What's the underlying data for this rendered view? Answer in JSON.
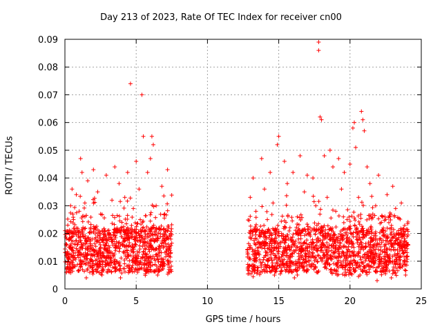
{
  "chart_data": {
    "type": "scatter",
    "title": "Day 213 of 2023, Rate Of TEC Index for receiver cn00",
    "xlabel": "GPS time / hours",
    "ylabel": "ROTI / TECUs",
    "xlim": [
      0,
      25
    ],
    "ylim": [
      0,
      0.09
    ],
    "xticks": [
      0,
      5,
      10,
      15,
      20,
      25
    ],
    "yticks": [
      0,
      0.01,
      0.02,
      0.03,
      0.04,
      0.05,
      0.06,
      0.07,
      0.08,
      0.09
    ],
    "xtick_labels": [
      "0",
      "5",
      "10",
      "15",
      "20",
      "25"
    ],
    "ytick_labels": [
      "0",
      "0.01",
      "0.02",
      "0.03",
      "0.04",
      "0.05",
      "0.06",
      "0.07",
      "0.08",
      "0.09"
    ],
    "grid": true,
    "marker": "+",
    "color": "#ff0000",
    "data_gap": [
      7.5,
      12.8
    ],
    "series": [
      {
        "points": [
          [
            0.1,
            0.012
          ],
          [
            0.2,
            0.023
          ],
          [
            0.3,
            0.015
          ],
          [
            0.4,
            0.03
          ],
          [
            0.5,
            0.036
          ],
          [
            0.6,
            0.025
          ],
          [
            0.7,
            0.008
          ],
          [
            0.8,
            0.034
          ],
          [
            0.9,
            0.016
          ],
          [
            1.0,
            0.028
          ],
          [
            1.1,
            0.047
          ],
          [
            1.2,
            0.042
          ],
          [
            1.3,
            0.019
          ],
          [
            1.4,
            0.031
          ],
          [
            1.5,
            0.011
          ],
          [
            1.6,
            0.039
          ],
          [
            1.8,
            0.022
          ],
          [
            2.0,
            0.043
          ],
          [
            2.1,
            0.018
          ],
          [
            2.3,
            0.035
          ],
          [
            2.5,
            0.027
          ],
          [
            2.7,
            0.013
          ],
          [
            2.9,
            0.041
          ],
          [
            3.1,
            0.02
          ],
          [
            3.3,
            0.032
          ],
          [
            3.5,
            0.044
          ],
          [
            3.6,
            0.015
          ],
          [
            3.8,
            0.038
          ],
          [
            4.0,
            0.024
          ],
          [
            4.2,
            0.033
          ],
          [
            4.4,
            0.042
          ],
          [
            4.6,
            0.074
          ],
          [
            4.8,
            0.029
          ],
          [
            5.0,
            0.046
          ],
          [
            5.2,
            0.036
          ],
          [
            5.4,
            0.07
          ],
          [
            5.5,
            0.055
          ],
          [
            5.6,
            0.018
          ],
          [
            5.8,
            0.042
          ],
          [
            6.0,
            0.047
          ],
          [
            6.1,
            0.055
          ],
          [
            6.2,
            0.052
          ],
          [
            6.4,
            0.03
          ],
          [
            6.6,
            0.022
          ],
          [
            6.8,
            0.037
          ],
          [
            7.0,
            0.027
          ],
          [
            7.2,
            0.043
          ],
          [
            7.4,
            0.019
          ],
          [
            13.0,
            0.033
          ],
          [
            13.2,
            0.04
          ],
          [
            13.4,
            0.028
          ],
          [
            13.6,
            0.015
          ],
          [
            13.8,
            0.047
          ],
          [
            14.0,
            0.036
          ],
          [
            14.2,
            0.025
          ],
          [
            14.4,
            0.042
          ],
          [
            14.6,
            0.031
          ],
          [
            14.9,
            0.052
          ],
          [
            15.0,
            0.055
          ],
          [
            15.2,
            0.02
          ],
          [
            15.4,
            0.046
          ],
          [
            15.6,
            0.038
          ],
          [
            15.8,
            0.014
          ],
          [
            16.0,
            0.042
          ],
          [
            16.3,
            0.026
          ],
          [
            16.5,
            0.048
          ],
          [
            16.8,
            0.035
          ],
          [
            17.0,
            0.041
          ],
          [
            17.2,
            0.022
          ],
          [
            17.4,
            0.04
          ],
          [
            17.6,
            0.03
          ],
          [
            17.8,
            0.089
          ],
          [
            17.8,
            0.086
          ],
          [
            17.9,
            0.062
          ],
          [
            18.0,
            0.061
          ],
          [
            18.2,
            0.048
          ],
          [
            18.4,
            0.033
          ],
          [
            18.6,
            0.05
          ],
          [
            18.8,
            0.044
          ],
          [
            19.0,
            0.028
          ],
          [
            19.2,
            0.047
          ],
          [
            19.4,
            0.036
          ],
          [
            19.6,
            0.042
          ],
          [
            19.8,
            0.025
          ],
          [
            20.0,
            0.045
          ],
          [
            20.2,
            0.058
          ],
          [
            20.3,
            0.06
          ],
          [
            20.4,
            0.051
          ],
          [
            20.6,
            0.033
          ],
          [
            20.8,
            0.064
          ],
          [
            20.9,
            0.061
          ],
          [
            21.0,
            0.057
          ],
          [
            21.2,
            0.044
          ],
          [
            21.4,
            0.038
          ],
          [
            21.6,
            0.027
          ],
          [
            21.8,
            0.03
          ],
          [
            22.0,
            0.041
          ],
          [
            22.2,
            0.024
          ],
          [
            22.4,
            0.019
          ],
          [
            22.6,
            0.034
          ],
          [
            22.8,
            0.026
          ],
          [
            23.0,
            0.037
          ],
          [
            23.2,
            0.029
          ],
          [
            23.4,
            0.021
          ],
          [
            23.6,
            0.031
          ],
          [
            23.8,
            0.017
          ],
          [
            24.0,
            0.016
          ],
          [
            0.3,
            0.006
          ],
          [
            1.5,
            0.004
          ],
          [
            2.6,
            0.005
          ],
          [
            3.9,
            0.004
          ],
          [
            5.1,
            0.006
          ],
          [
            6.5,
            0.005
          ],
          [
            7.3,
            0.007
          ],
          [
            13.3,
            0.006
          ],
          [
            14.7,
            0.005
          ],
          [
            16.1,
            0.004
          ],
          [
            17.7,
            0.006
          ],
          [
            19.1,
            0.005
          ],
          [
            20.7,
            0.005
          ],
          [
            21.9,
            0.003
          ],
          [
            22.9,
            0.004
          ],
          [
            23.9,
            0.005
          ]
        ]
      }
    ]
  }
}
